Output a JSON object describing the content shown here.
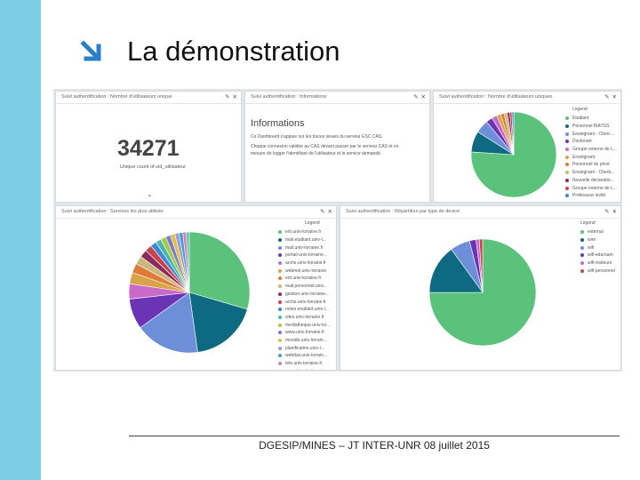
{
  "slide": {
    "title": "La démonstration",
    "footer": "DGESIP/MINES – JT INTER-UNR 08 juillet 2015"
  },
  "colors": {
    "sidebar": "#7ecde6",
    "arrow": "#2a7fc8"
  },
  "panels": {
    "unique_users": {
      "title": "Suivi authentification : Nombre d'utilisateurs unique",
      "value": "34271",
      "label": "Unique count of uid_utilisateur"
    },
    "informations": {
      "title": "Suivi authentification : Informations",
      "heading": "Informations",
      "paragraph1_line1": "Ce Dashboard s'appuie sur les traces issues du serveur ESC CAS.",
      "paragraph2_line1": "Chaque connexion validée au CAS devant passer par le serveur CAS et en",
      "paragraph2_line2": "mesure de logger l'identifiant de l'utilisateur et le service demandé."
    },
    "user_types": {
      "title": "Suivi authentification : Nombre d'utilisateurs uniques",
      "legend_title": "Legend",
      "legend": [
        {
          "label": "Etudiant",
          "color": "#5bc27c"
        },
        {
          "label": "Personnel BIATSS",
          "color": "#0e6a80"
        },
        {
          "label": "Enseignant - Cherc...",
          "color": "#6d8fd9"
        },
        {
          "label": "Doctorant",
          "color": "#6a34b4"
        },
        {
          "label": "Groupe externe de L...",
          "color": "#c86ac8"
        },
        {
          "label": "Enseignant",
          "color": "#d8a44a"
        },
        {
          "label": "Personnel du privé",
          "color": "#e07a38"
        },
        {
          "label": "Enseignant - Check...",
          "color": "#c9b87a"
        },
        {
          "label": "Nouvelle déclaratio...",
          "color": "#8a2a60"
        },
        {
          "label": "Groupe externe de L...",
          "color": "#c8444a"
        },
        {
          "label": "Professeur invité",
          "color": "#3f87d4"
        }
      ]
    },
    "services": {
      "title": "Suivi authentification : Services les plus utilisés",
      "legend_title": "Legend",
      "legend": [
        {
          "label": "ent.univ-lorraine.fr",
          "color": "#5bc27c"
        },
        {
          "label": "mail.etudiant.univ-l...",
          "color": "#0e6a80"
        },
        {
          "label": "mail.univ-lorraine.fr",
          "color": "#6d8fd9"
        },
        {
          "label": "portail-univ-lorraine...",
          "color": "#6a34b4"
        },
        {
          "label": "arche.univ-lorraine.fr",
          "color": "#c86ac8"
        },
        {
          "label": "webmel.univ-lorraine",
          "color": "#d8a44a"
        },
        {
          "label": "ent.univ-lorraine.fr",
          "color": "#e07a38"
        },
        {
          "label": "mail.personnel.univ...",
          "color": "#c9b87a"
        },
        {
          "label": "gestion.univ-lorraine...",
          "color": "#8a2a60"
        },
        {
          "label": "arche.univ-lorraine.fr",
          "color": "#c8444a"
        },
        {
          "label": "notes.etudiant.univ-l...",
          "color": "#3f87d4"
        },
        {
          "label": "sites.univ-lorraine.fr",
          "color": "#4bb8a8"
        },
        {
          "label": "mediatheque.univ-lor...",
          "color": "#a8c84a"
        },
        {
          "label": "www.univ-lorraine.fr",
          "color": "#7a7ad0"
        },
        {
          "label": "moodle.univ-lorrain...",
          "color": "#e0c040"
        },
        {
          "label": "planification.univ-l...",
          "color": "#9a9ad8"
        },
        {
          "label": "webdav.univ-lorrain...",
          "color": "#46a0c8"
        },
        {
          "label": "tele.univ-lorraine.fr",
          "color": "#d880b0"
        },
        {
          "label": "console.univ-lorrai...",
          "color": "#58c8b0"
        }
      ]
    },
    "device_types": {
      "title": "Suivi authentification : Répartition par type de device",
      "legend_title": "Legend",
      "legend": [
        {
          "label": "external",
          "color": "#5bc27c"
        },
        {
          "label": "wire",
          "color": "#0e6a80"
        },
        {
          "label": "wifi",
          "color": "#6d8fd9"
        },
        {
          "label": "wifi-eduroam",
          "color": "#6a34b4"
        },
        {
          "label": "wifi-visiteurs",
          "color": "#c86ac8"
        },
        {
          "label": "wifi-personnel",
          "color": "#c8444a"
        }
      ]
    }
  },
  "chart_data": [
    {
      "type": "pie",
      "categories": [
        "Etudiant",
        "Personnel BIATSS",
        "Enseignant - Cherc...",
        "Doctorant",
        "Groupe externe de L...",
        "Enseignant",
        "Personnel du privé",
        "Enseignant - Check...",
        "Nouvelle déclaratio...",
        "Groupe externe de L...",
        "Professeur invité"
      ],
      "values": [
        76,
        8,
        5,
        2.5,
        2,
        1.5,
        1.3,
        1.2,
        1.0,
        0.8,
        0.7
      ]
    },
    {
      "type": "pie",
      "categories": [
        "ent.univ-lorraine.fr",
        "mail.etudiant.univ-l...",
        "mail.univ-lorraine.fr",
        "portail-univ-lorraine...",
        "arche.univ-lorraine.fr",
        "webmel.univ-lorraine",
        "ent.univ-lorraine.fr",
        "mail.personnel.univ...",
        "gestion.univ-lorraine...",
        "arche.univ-lorraine.fr",
        "notes.etudiant.univ-l...",
        "sites.univ-lorraine.fr",
        "mediatheque.univ-lor...",
        "www.univ-lorraine.fr",
        "moodle.univ-lorrain...",
        "planification.univ-l...",
        "webdav.univ-lorrain...",
        "tele.univ-lorraine.fr",
        "console.univ-lorrai..."
      ],
      "values": [
        29,
        18,
        17,
        8,
        4,
        3,
        2.5,
        2.2,
        2,
        1.8,
        1.6,
        1.5,
        1.4,
        1.3,
        1.2,
        1.1,
        1.0,
        0.9,
        0.8
      ]
    },
    {
      "type": "pie",
      "categories": [
        "external",
        "wire",
        "wifi",
        "wifi-eduroam",
        "wifi-visiteurs",
        "wifi-personnel"
      ],
      "values": [
        75,
        15,
        6,
        2,
        1,
        1
      ]
    }
  ]
}
